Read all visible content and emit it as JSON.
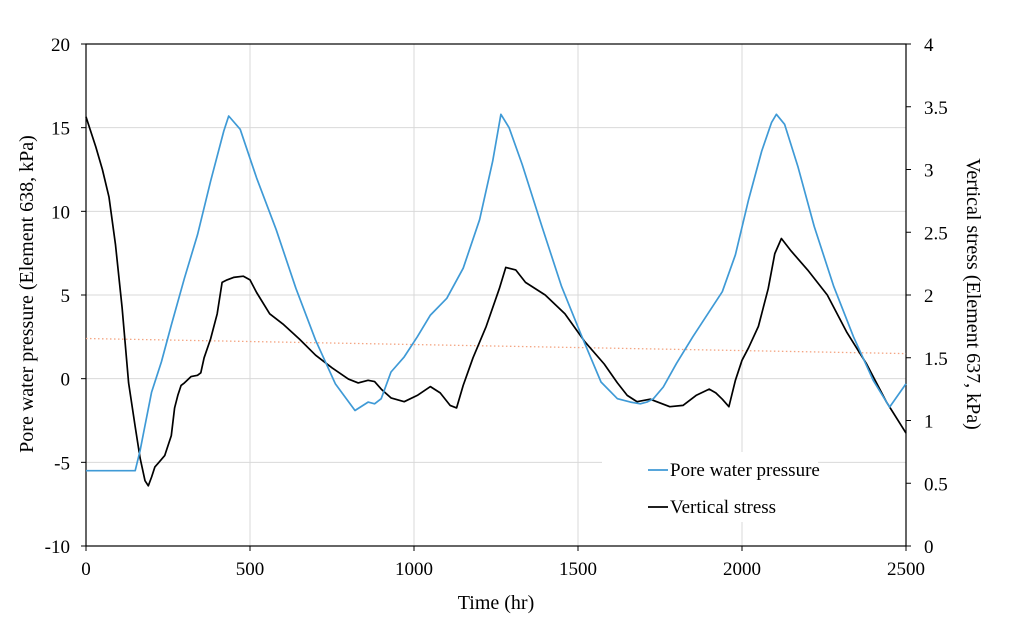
{
  "chart_data": {
    "type": "line",
    "title": "",
    "xlabel": "Time (hr)",
    "ylabel_left": "Pore water pressure (Element 638, kPa)",
    "ylabel_right": "Vertical stress (Element 637, kPa)",
    "xlim": [
      0,
      2500
    ],
    "ylim_left": [
      -10,
      20
    ],
    "ylim_right": [
      0,
      4
    ],
    "x_ticks": [
      "0",
      "500",
      "1000",
      "1500",
      "2000",
      "2500"
    ],
    "y_left_ticks": [
      "-10",
      "-5",
      "0",
      "5",
      "10",
      "15",
      "20"
    ],
    "y_right_ticks": [
      "0",
      "0.5",
      "1",
      "1.5",
      "2",
      "2.5",
      "3",
      "3.5",
      "4"
    ],
    "grid": true,
    "legend_position": "bottom-right",
    "colors": {
      "pore_water_pressure": "#3f9ad6",
      "vertical_stress": "#000000",
      "trend": "#f4a582",
      "grid": "#d9d9d9"
    },
    "series": [
      {
        "name": "Pore water pressure",
        "axis": "left",
        "x": [
          0,
          150,
          165,
          180,
          200,
          230,
          260,
          300,
          340,
          380,
          420,
          435,
          470,
          520,
          580,
          640,
          700,
          760,
          820,
          860,
          880,
          900,
          930,
          970,
          1010,
          1050,
          1100,
          1150,
          1200,
          1240,
          1265,
          1290,
          1330,
          1390,
          1450,
          1510,
          1570,
          1620,
          1660,
          1690,
          1710,
          1730,
          1760,
          1800,
          1850,
          1900,
          1940,
          1980,
          2020,
          2060,
          2090,
          2105,
          2130,
          2170,
          2220,
          2280,
          2340,
          2400,
          2450,
          2500
        ],
        "y": [
          -5.5,
          -5.5,
          -4.3,
          -2.8,
          -0.8,
          1.0,
          3.2,
          6.0,
          8.6,
          11.8,
          14.8,
          15.7,
          14.9,
          12.0,
          8.9,
          5.4,
          2.3,
          -0.3,
          -1.9,
          -1.4,
          -1.5,
          -1.2,
          0.4,
          1.3,
          2.5,
          3.8,
          4.8,
          6.6,
          9.5,
          13.0,
          15.8,
          15.0,
          12.8,
          9.1,
          5.5,
          2.6,
          -0.2,
          -1.2,
          -1.4,
          -1.5,
          -1.4,
          -1.2,
          -0.5,
          0.9,
          2.5,
          4.0,
          5.2,
          7.4,
          10.7,
          13.6,
          15.3,
          15.8,
          15.2,
          12.7,
          9.1,
          5.5,
          2.5,
          -0.1,
          -1.7,
          -0.3
        ]
      },
      {
        "name": "Vertical stress",
        "axis": "right",
        "x": [
          0,
          15,
          30,
          50,
          70,
          90,
          110,
          130,
          150,
          165,
          180,
          190,
          200,
          210,
          220,
          240,
          260,
          270,
          280,
          290,
          300,
          320,
          340,
          350,
          360,
          380,
          400,
          415,
          430,
          450,
          480,
          500,
          520,
          560,
          600,
          650,
          700,
          750,
          800,
          830,
          860,
          880,
          900,
          930,
          970,
          1010,
          1050,
          1080,
          1110,
          1130,
          1150,
          1180,
          1220,
          1260,
          1280,
          1310,
          1340,
          1400,
          1460,
          1520,
          1580,
          1620,
          1650,
          1680,
          1700,
          1720,
          1740,
          1780,
          1820,
          1860,
          1900,
          1920,
          1940,
          1960,
          1980,
          2000,
          2020,
          2050,
          2080,
          2100,
          2120,
          2150,
          2200,
          2260,
          2320,
          2380,
          2440,
          2500
        ],
        "y": [
          3.42,
          3.3,
          3.18,
          3.0,
          2.78,
          2.4,
          1.9,
          1.3,
          0.95,
          0.7,
          0.52,
          0.48,
          0.55,
          0.63,
          0.66,
          0.72,
          0.88,
          1.1,
          1.2,
          1.28,
          1.3,
          1.35,
          1.36,
          1.38,
          1.5,
          1.65,
          1.85,
          2.1,
          2.12,
          2.14,
          2.15,
          2.12,
          2.02,
          1.85,
          1.77,
          1.65,
          1.52,
          1.42,
          1.33,
          1.3,
          1.32,
          1.31,
          1.25,
          1.18,
          1.15,
          1.2,
          1.27,
          1.22,
          1.12,
          1.1,
          1.28,
          1.5,
          1.75,
          2.05,
          2.22,
          2.2,
          2.1,
          2.0,
          1.85,
          1.63,
          1.45,
          1.3,
          1.2,
          1.15,
          1.16,
          1.17,
          1.15,
          1.11,
          1.12,
          1.2,
          1.25,
          1.22,
          1.17,
          1.11,
          1.32,
          1.48,
          1.58,
          1.75,
          2.05,
          2.33,
          2.45,
          2.35,
          2.2,
          2.0,
          1.7,
          1.45,
          1.15,
          0.9
        ]
      },
      {
        "name": "",
        "axis": "left",
        "style": "dotted-trend",
        "x": [
          0,
          2500
        ],
        "y": [
          2.4,
          1.5
        ]
      }
    ]
  }
}
